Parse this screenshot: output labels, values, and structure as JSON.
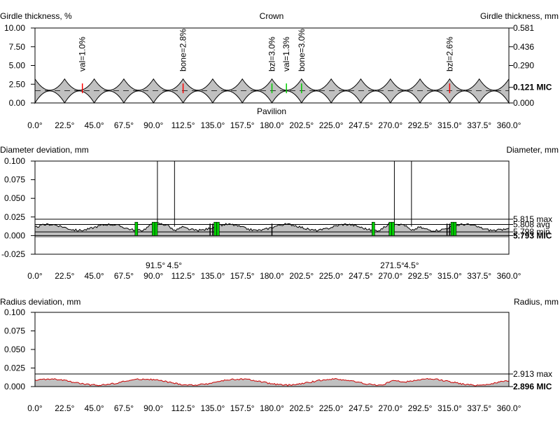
{
  "chart_data": [
    {
      "type": "area",
      "title": "Crown",
      "bottom_title": "Pavilion",
      "ylabel_left": "Girdle thickness, %",
      "ylabel_right": "Girdle thickness, mm",
      "left_ticks": [
        "10.00",
        "7.50",
        "5.00",
        "2.50",
        "0.00"
      ],
      "left_values": [
        10,
        7.5,
        5,
        2.5,
        0
      ],
      "right_ticks": [
        "0.581",
        "0.436",
        "0.290",
        "0.121 MIC",
        "0.000"
      ],
      "right_values": [
        10,
        7.5,
        5,
        2.08,
        0
      ],
      "x_ticks": [
        "0.0°",
        "22.5°",
        "45.0°",
        "67.5°",
        "90.0°",
        "112.5°",
        "135.0°",
        "157.5°",
        "180.0°",
        "202.5°",
        "225.0°",
        "247.5°",
        "270.0°",
        "292.5°",
        "315.0°",
        "337.5°",
        "360.0°"
      ],
      "xlim": [
        0,
        360
      ],
      "ylim": [
        0,
        10
      ],
      "band": {
        "upper_max": 3.2,
        "upper_min": 1.7,
        "lower_min": 0.0,
        "lower_max": 1.6,
        "scallops": 16
      },
      "annotations": [
        {
          "label": "val=1.0%",
          "x": 36,
          "color": "#ff0000"
        },
        {
          "label": "bone=2.8%",
          "x": 112.5,
          "color": "#ff0000"
        },
        {
          "label": "bzl=3.0%",
          "x": 180,
          "color": "#00cc00"
        },
        {
          "label": "val=1.3%",
          "x": 191,
          "color": "#00cc00"
        },
        {
          "label": "bone=3.0%",
          "x": 202.5,
          "color": "#00cc00"
        },
        {
          "label": "bzl=2.6%",
          "x": 315,
          "color": "#ff0000"
        }
      ],
      "colors": {
        "fill": "#c0c0c0",
        "line": "#000000"
      }
    },
    {
      "type": "area",
      "ylabel_left": "Diameter deviation, mm",
      "ylabel_right": "Diameter, mm",
      "left_ticks": [
        "0.100",
        "0.075",
        "0.050",
        "0.025",
        "0.000",
        "-0.025"
      ],
      "left_values": [
        0.1,
        0.075,
        0.05,
        0.025,
        0,
        -0.025
      ],
      "right_labels": [
        {
          "text": "5.815 max",
          "value": 0.022
        },
        {
          "text": "5.808 avg",
          "value": 0.015
        },
        {
          "text": "5.798 min",
          "value": 0.005
        },
        {
          "text": "5.793 MIC",
          "value": 0.0
        }
      ],
      "x_ticks": [
        "0.0°",
        "22.5°",
        "45.0°",
        "67.5°",
        "90.0°",
        "112.5°",
        "135.0°",
        "157.5°",
        "180.0°",
        "202.5°",
        "225.0°",
        "247.5°",
        "270.0°",
        "292.5°",
        "315.0°",
        "337.5°",
        "360.0°"
      ],
      "xlim": [
        0,
        360
      ],
      "ylim": [
        -0.025,
        0.1
      ],
      "reference_lines": [
        0.022,
        0.015,
        0.005
      ],
      "vertical_markers": [
        93,
        106,
        273,
        286
      ],
      "green_bars": [
        77,
        90,
        92,
        137,
        139,
        257,
        270,
        272,
        317,
        319
      ],
      "black_ticks": [
        133,
        135,
        180,
        313,
        315
      ],
      "angle_labels": [
        {
          "text": "91.5°",
          "x": 91.5,
          "color": "#00cc00"
        },
        {
          "text": "4.5°",
          "x": 106,
          "color": "#ff0000"
        },
        {
          "text": "271.5°",
          "x": 271.5,
          "color": "#00cc00"
        },
        {
          "text": "4.5°",
          "x": 286,
          "color": "#ff0000"
        }
      ],
      "colors": {
        "fill": "#c0c0c0",
        "line": "#000000"
      }
    },
    {
      "type": "area",
      "ylabel_left": "Radius deviation, mm",
      "ylabel_right": "Radius, mm",
      "left_ticks": [
        "0.100",
        "0.075",
        "0.050",
        "0.025",
        "0.000"
      ],
      "left_values": [
        0.1,
        0.075,
        0.05,
        0.025,
        0
      ],
      "right_labels": [
        {
          "text": "2.913 max",
          "value": 0.017
        },
        {
          "text": "2.896 MIC",
          "value": 0.0
        }
      ],
      "x_ticks": [
        "0.0°",
        "22.5°",
        "45.0°",
        "67.5°",
        "90.0°",
        "112.5°",
        "135.0°",
        "157.5°",
        "180.0°",
        "202.5°",
        "225.0°",
        "247.5°",
        "270.0°",
        "292.5°",
        "315.0°",
        "337.5°",
        "360.0°"
      ],
      "xlim": [
        0,
        360
      ],
      "ylim": [
        0,
        0.1
      ],
      "reference_lines": [
        0.017
      ],
      "colors": {
        "fill": "#c0c0c0",
        "line": "#cc0000"
      }
    }
  ]
}
